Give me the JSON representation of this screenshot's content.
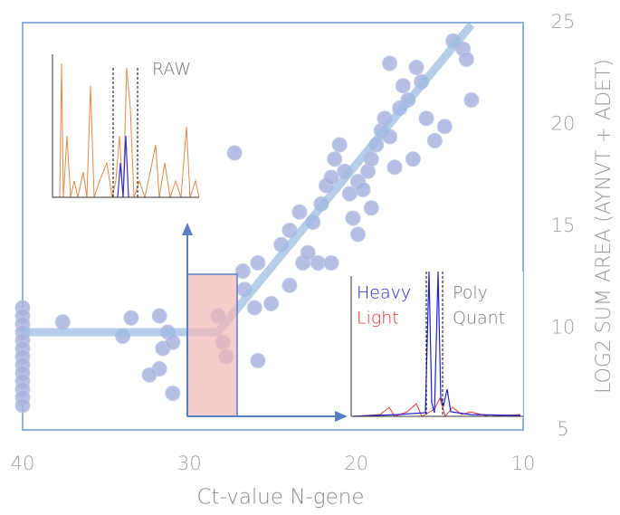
{
  "chart_data": {
    "type": "scatter",
    "x_label": "Ct-value N-gene",
    "y_label": "LOG2 SUM AREA (AYNVT + ADET)",
    "xlim": [
      40,
      10
    ],
    "xticks": [
      40,
      30,
      20,
      10
    ],
    "ylim": [
      5,
      25
    ],
    "yticks": [
      5,
      10,
      15,
      20,
      25
    ],
    "series": [
      {
        "color": "#a9b3de",
        "x": [
          40,
          40,
          40,
          40,
          40,
          40,
          40,
          40,
          40,
          40,
          40,
          40,
          40,
          37.6,
          34.0,
          33.5,
          31.8,
          31.6,
          31.3,
          31.0,
          31.8,
          32.4,
          31.0,
          28.3,
          28.0,
          27.8,
          27.3,
          25.9,
          26.8,
          26.7,
          25.9,
          26.1,
          25.1,
          24.5,
          24.0,
          24.0,
          23.2,
          22.9,
          22.6,
          22.3,
          23.4,
          22.1,
          21.8,
          21.5,
          21.3,
          21.0,
          20.7,
          20.4,
          20.2,
          19.9,
          19.6,
          19.3,
          19.1,
          18.8,
          18.5,
          18.3,
          18.0,
          17.7,
          17.4,
          17.2,
          16.9,
          16.6,
          16.4,
          16.1,
          15.8,
          15.3,
          14.7,
          18.0,
          14.2,
          13.6,
          13.4,
          13.1,
          19.1,
          21.5,
          19.9
        ],
        "y": [
          11.0,
          10.6,
          10.2,
          9.8,
          9.4,
          9.0,
          8.6,
          8.2,
          7.8,
          7.4,
          7.0,
          6.6,
          6.2,
          10.3,
          9.6,
          10.5,
          10.6,
          9.0,
          9.8,
          9.3,
          8.0,
          7.7,
          6.8,
          10.6,
          9.3,
          8.6,
          18.6,
          8.4,
          12.8,
          11.9,
          13.2,
          11.0,
          11.2,
          14.1,
          14.8,
          12.1,
          13.2,
          13.7,
          15.2,
          13.2,
          15.7,
          16.1,
          17.0,
          17.4,
          18.3,
          19.0,
          17.7,
          16.6,
          15.4,
          17.2,
          16.8,
          17.7,
          18.3,
          19.0,
          19.7,
          20.3,
          19.4,
          17.9,
          20.8,
          21.9,
          21.2,
          18.3,
          22.8,
          22.1,
          20.3,
          19.2,
          19.9,
          23.0,
          24.1,
          23.7,
          23.2,
          21.2,
          15.9,
          13.2,
          14.6
        ]
      }
    ],
    "trend_line": {
      "color": "#9dbde3",
      "x": [
        40,
        28.3,
        13.1
      ],
      "y": [
        9.8,
        9.8,
        24.9
      ]
    },
    "annotations": [
      "RAW",
      "Heavy",
      "Light",
      "Poly",
      "Quant"
    ]
  }
}
